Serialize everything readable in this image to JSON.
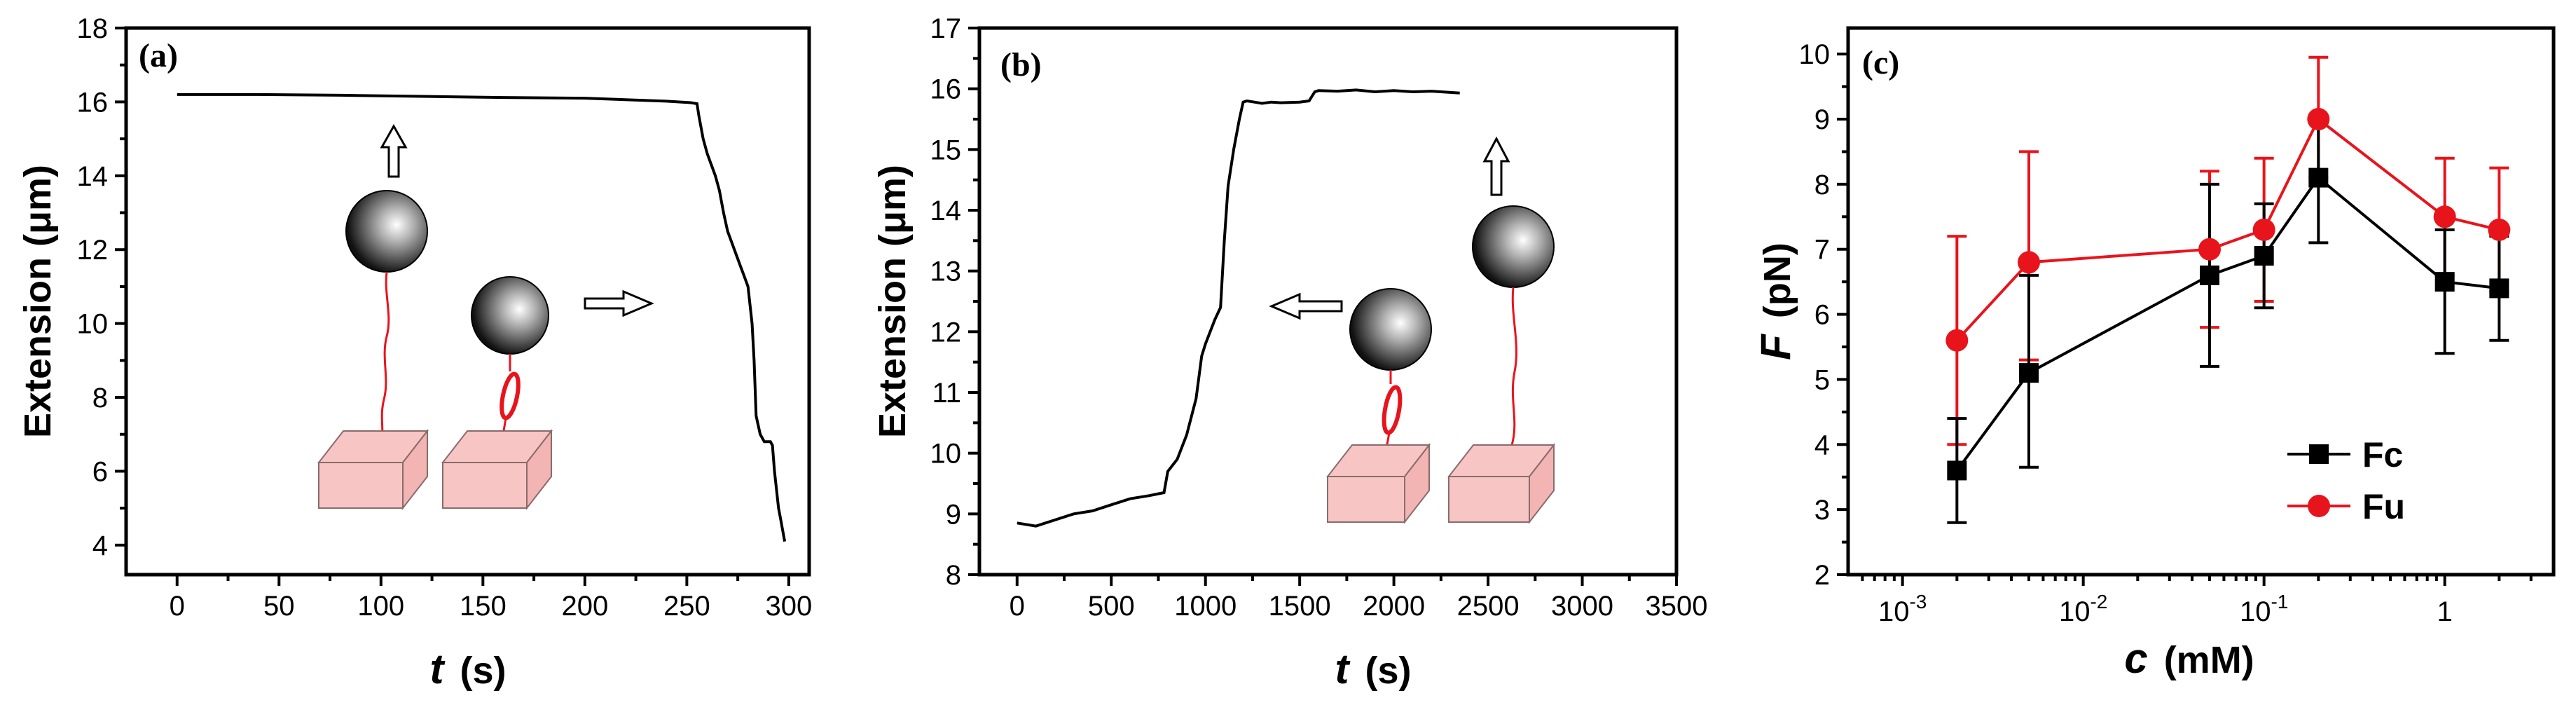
{
  "colors": {
    "black": "#000000",
    "red": "#e8141c",
    "box_fill": "#f7c6c4",
    "box_stroke": "#8a6b6b",
    "tether": "#e8141c"
  },
  "chart_data": [
    {
      "type": "line",
      "panel_label": "(a)",
      "xlabel": "t",
      "xlabel_unit": "(s)",
      "ylabel": "Extension (μm)",
      "xlim": [
        -25,
        310
      ],
      "ylim": [
        3.2,
        18
      ],
      "xticks": [
        0,
        50,
        100,
        150,
        200,
        250,
        300
      ],
      "yticks": [
        4,
        6,
        8,
        10,
        12,
        14,
        16,
        18
      ],
      "series": [
        {
          "name": "extension",
          "color": "#000000",
          "x": [
            0,
            40,
            80,
            120,
            160,
            200,
            240,
            252,
            255,
            256,
            258,
            260,
            262,
            264,
            266,
            268,
            270,
            272,
            274,
            276,
            278,
            280,
            282,
            283,
            284,
            286,
            288,
            290,
            291,
            292,
            293,
            294,
            295,
            296,
            297,
            298
          ],
          "y": [
            16.2,
            16.2,
            16.18,
            16.15,
            16.12,
            16.1,
            16.02,
            15.98,
            15.95,
            15.6,
            15.0,
            14.6,
            14.3,
            14.0,
            13.6,
            13.0,
            12.5,
            12.2,
            11.9,
            11.6,
            11.3,
            11.0,
            10.0,
            9.0,
            7.5,
            7.0,
            6.8,
            6.8,
            6.8,
            6.7,
            6.0,
            5.5,
            5.0,
            4.7,
            4.4,
            4.1
          ]
        }
      ]
    },
    {
      "type": "line",
      "panel_label": "(b)",
      "xlabel": "t",
      "xlabel_unit": "(s)",
      "ylabel": "Extension (μm)",
      "xlim": [
        -200,
        3500
      ],
      "ylim": [
        8,
        17
      ],
      "xticks": [
        0,
        500,
        1000,
        1500,
        2000,
        2500,
        3000,
        3500
      ],
      "yticks": [
        8,
        9,
        10,
        11,
        12,
        13,
        14,
        15,
        16,
        17
      ],
      "series": [
        {
          "name": "extension",
          "color": "#000000",
          "x": [
            0,
            100,
            200,
            300,
            400,
            500,
            600,
            700,
            780,
            800,
            850,
            900,
            950,
            980,
            1000,
            1050,
            1080,
            1100,
            1120,
            1150,
            1180,
            1200,
            1220,
            1260,
            1300,
            1350,
            1400,
            1500,
            1550,
            1580,
            1600,
            1700,
            1800,
            1900,
            2000,
            2100,
            2200,
            2300,
            2350
          ],
          "y": [
            8.85,
            8.8,
            8.9,
            9.0,
            9.05,
            9.15,
            9.25,
            9.3,
            9.35,
            9.7,
            9.9,
            10.3,
            10.9,
            11.6,
            11.8,
            12.2,
            12.4,
            13.5,
            14.4,
            15.0,
            15.5,
            15.78,
            15.8,
            15.78,
            15.76,
            15.78,
            15.77,
            15.78,
            15.8,
            15.95,
            15.97,
            15.96,
            15.98,
            15.95,
            15.97,
            15.95,
            15.96,
            15.94,
            15.93
          ]
        }
      ]
    },
    {
      "type": "line",
      "panel_label": "(c)",
      "xlabel": "c",
      "xlabel_unit": "(mM)",
      "ylabel": "F",
      "ylabel_unit": "(pN)",
      "xscale": "log",
      "xlim": [
        0.0005,
        4
      ],
      "ylim": [
        2,
        10.4
      ],
      "xticks": [
        0.001,
        0.01,
        0.1,
        1
      ],
      "xtick_labels": [
        {
          "base": "10",
          "exp": "-3"
        },
        {
          "base": "10",
          "exp": "-2"
        },
        {
          "base": "10",
          "exp": "-1"
        },
        {
          "base": "1",
          "exp": ""
        }
      ],
      "yticks": [
        2,
        3,
        4,
        5,
        6,
        7,
        8,
        9,
        10
      ],
      "legend": "lower-right",
      "series": [
        {
          "name": "Fc",
          "marker": "square",
          "color": "#000000",
          "x": [
            0.002,
            0.005,
            0.05,
            0.1,
            0.2,
            1,
            2
          ],
          "y": [
            3.6,
            5.1,
            6.6,
            6.9,
            8.1,
            6.5,
            6.4
          ],
          "err_upper": [
            0.8,
            1.5,
            1.4,
            0.8,
            0.9,
            0.8,
            0.8
          ],
          "err_lower": [
            0.8,
            1.45,
            1.4,
            0.8,
            1.0,
            1.1,
            0.8
          ]
        },
        {
          "name": "Fu",
          "marker": "circle",
          "color": "#e8141c",
          "x": [
            0.002,
            0.005,
            0.05,
            0.1,
            0.2,
            1,
            2
          ],
          "y": [
            5.6,
            6.8,
            7.0,
            7.3,
            9.0,
            7.5,
            7.3
          ],
          "err_upper": [
            1.6,
            1.7,
            1.2,
            1.1,
            0.95,
            0.9,
            0.95
          ],
          "err_lower": [
            1.6,
            1.5,
            1.2,
            1.1,
            0.9,
            0.9,
            0.95
          ]
        }
      ]
    }
  ]
}
